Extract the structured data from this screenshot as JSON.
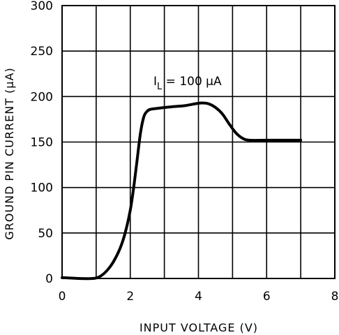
{
  "chart_data": {
    "type": "line",
    "title": "",
    "xlabel": "INPUT VOLTAGE (V)",
    "ylabel": "GROUND PIN CURRENT (μA)",
    "xlim": [
      0,
      8
    ],
    "ylim": [
      0,
      300
    ],
    "xticks": [
      0,
      2,
      4,
      6,
      8
    ],
    "yticks": [
      0,
      50,
      100,
      150,
      200,
      250,
      300
    ],
    "grid": true,
    "legend": "none",
    "annotation": "I_L = 100 μA",
    "series": [
      {
        "color": "#000000",
        "x": [
          0.0,
          0.5,
          0.9,
          1.1,
          1.3,
          1.5,
          1.7,
          1.85,
          2.0,
          2.1,
          2.2,
          2.3,
          2.4,
          2.5,
          2.6,
          2.8,
          3.0,
          3.3,
          3.6,
          3.9,
          4.1,
          4.3,
          4.5,
          4.7,
          4.9,
          5.1,
          5.3,
          5.5,
          6.0,
          6.5,
          7.0
        ],
        "y": [
          1,
          0,
          0,
          2,
          8,
          18,
          33,
          50,
          75,
          100,
          130,
          160,
          178,
          184,
          186,
          187,
          188,
          189,
          190,
          192,
          193,
          192,
          188,
          181,
          170,
          160,
          154,
          152,
          152,
          152,
          152
        ]
      }
    ]
  }
}
